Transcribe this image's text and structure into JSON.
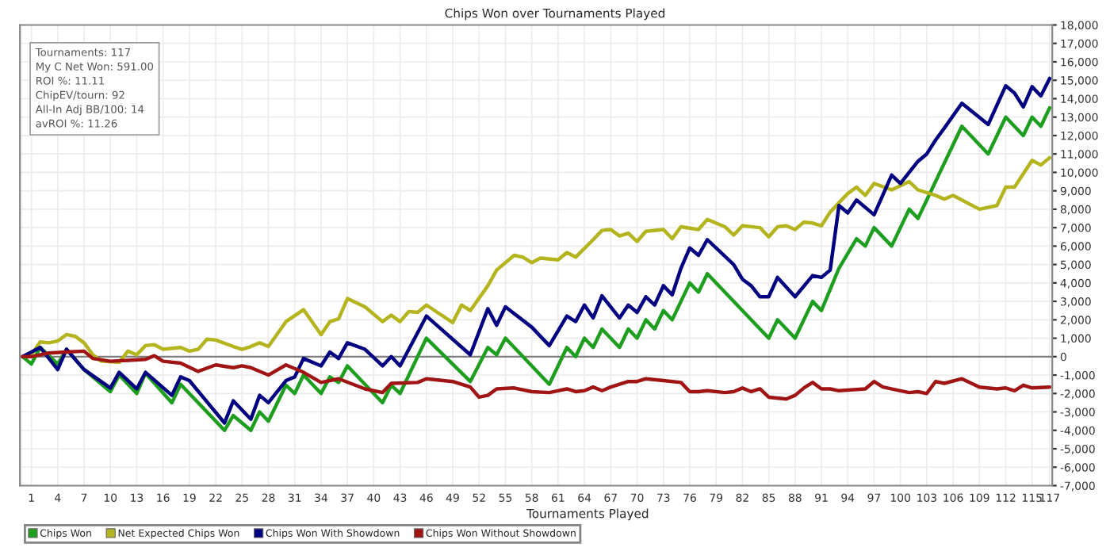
{
  "chart_data": {
    "type": "line",
    "title": "Chips Won over Tournaments Played",
    "xlabel": "Tournaments Played",
    "annotations": [
      "Tournaments: 117",
      "My C Net Won: 591.00",
      "ROI %: 11.11",
      "ChipEV/tourn: 92",
      "All-In Adj BB/100: 14",
      "avROI %: 11.26"
    ],
    "xlim": [
      -0.3,
      117.3
    ],
    "xticks": [
      1,
      4,
      7,
      10,
      13,
      16,
      19,
      22,
      25,
      28,
      31,
      34,
      37,
      40,
      43,
      46,
      49,
      52,
      55,
      58,
      61,
      64,
      67,
      70,
      73,
      76,
      79,
      82,
      85,
      88,
      91,
      94,
      97,
      100,
      103,
      106,
      109,
      112,
      115,
      117
    ],
    "ylim": [
      -7000,
      18000
    ],
    "yticks": [
      {
        "value": -7000,
        "label": "-7,000"
      },
      {
        "value": -6000,
        "label": "-6,000"
      },
      {
        "value": -5000,
        "label": "-5,000"
      },
      {
        "value": -4000,
        "label": "-4,000"
      },
      {
        "value": -3000,
        "label": "-3,000"
      },
      {
        "value": -2000,
        "label": "-2,000"
      },
      {
        "value": -1000,
        "label": "-1,000"
      },
      0,
      {
        "value": 1000,
        "label": "1,000"
      },
      {
        "value": 2000,
        "label": "2,000"
      },
      {
        "value": 3000,
        "label": "3,000"
      },
      {
        "value": 4000,
        "label": "4,000"
      },
      {
        "value": 5000,
        "label": "5,000"
      },
      {
        "value": 6000,
        "label": "6,000"
      },
      {
        "value": 7000,
        "label": "7,000"
      },
      {
        "value": 8000,
        "label": "8,000"
      },
      {
        "value": 9000,
        "label": "9,000"
      },
      {
        "value": 10000,
        "label": "10,000"
      },
      {
        "value": 11000,
        "label": "11,000"
      },
      {
        "value": 12000,
        "label": "12,000"
      },
      {
        "value": 13000,
        "label": "13,000"
      },
      {
        "value": 14000,
        "label": "14,000"
      },
      {
        "value": 15000,
        "label": "15,000"
      },
      {
        "value": 16000,
        "label": "16,000"
      },
      {
        "value": 17000,
        "label": "17,000"
      },
      {
        "value": 18000,
        "label": "18,000"
      }
    ],
    "grid": true,
    "legend": "bottom",
    "marker": "none",
    "line_style": "solid",
    "ref_lines": [
      {
        "axis": "y",
        "value": 0,
        "color": "#808080"
      }
    ],
    "series": [
      {
        "name": "Chips Won",
        "color": "#1e9e1e",
        "x": [
          0,
          1,
          2,
          4,
          5,
          7,
          10,
          11,
          13,
          14,
          17,
          18,
          23,
          24,
          26,
          27,
          28,
          30,
          31,
          32,
          34,
          35,
          36,
          37,
          41,
          42,
          43,
          46,
          51,
          53,
          54,
          55,
          60,
          62,
          63,
          64,
          65,
          66,
          68,
          69,
          70,
          71,
          72,
          73,
          74,
          76,
          77,
          78,
          85,
          86,
          88,
          90,
          91,
          93,
          95,
          96,
          97,
          99,
          101,
          102,
          107,
          110,
          112,
          114,
          115,
          116,
          117
        ],
        "values": [
          0,
          -400,
          500,
          -400,
          400,
          -700,
          -1900,
          -1000,
          -2000,
          -900,
          -2500,
          -1500,
          -4000,
          -3200,
          -4000,
          -3000,
          -3500,
          -1550,
          -2000,
          -1000,
          -2000,
          -1100,
          -1400,
          -500,
          -2500,
          -1550,
          -2000,
          1000,
          -1350,
          500,
          100,
          1000,
          -1500,
          500,
          0,
          1000,
          500,
          1500,
          500,
          1500,
          1000,
          2000,
          1500,
          2500,
          2000,
          4000,
          3500,
          4500,
          1000,
          2000,
          1000,
          3000,
          2500,
          4800,
          6400,
          6000,
          7000,
          6000,
          8000,
          7500,
          12500,
          11000,
          13000,
          12000,
          13000,
          12500,
          13500
        ]
      },
      {
        "name": "Net Expected Chips Won",
        "color": "#b4b41e",
        "x": [
          0,
          1,
          2,
          3,
          4,
          5,
          6,
          7,
          8,
          9,
          11,
          12,
          13,
          14,
          15,
          16,
          18,
          19,
          20,
          21,
          22,
          24,
          25,
          26,
          27,
          28,
          30,
          32,
          34,
          35,
          36,
          37,
          39,
          41,
          42,
          43,
          44,
          45,
          46,
          49,
          50,
          51,
          53,
          54,
          56,
          57,
          58,
          59,
          61,
          62,
          63,
          65,
          66,
          67,
          68,
          69,
          70,
          71,
          73,
          74,
          75,
          77,
          78,
          80,
          81,
          82,
          84,
          85,
          86,
          87,
          88,
          89,
          90,
          91,
          92,
          94,
          95,
          96,
          97,
          99,
          101,
          102,
          104,
          105,
          106,
          109,
          111,
          112,
          113,
          115,
          116,
          117
        ],
        "values": [
          0,
          100,
          800,
          750,
          850,
          1200,
          1100,
          750,
          100,
          -250,
          -300,
          300,
          100,
          600,
          650,
          400,
          500,
          300,
          400,
          950,
          900,
          550,
          400,
          550,
          750,
          550,
          1900,
          2550,
          1200,
          1900,
          2050,
          3150,
          2700,
          1900,
          2250,
          1900,
          2450,
          2400,
          2800,
          1850,
          2800,
          2500,
          3850,
          4700,
          5500,
          5400,
          5100,
          5350,
          5250,
          5650,
          5400,
          6350,
          6850,
          6900,
          6550,
          6700,
          6250,
          6800,
          6900,
          6400,
          7050,
          6900,
          7450,
          7050,
          6600,
          7100,
          7000,
          6500,
          7050,
          7100,
          6900,
          7300,
          7250,
          7100,
          7850,
          8850,
          9200,
          8750,
          9400,
          9050,
          9500,
          9050,
          8750,
          8550,
          8750,
          8000,
          8200,
          9200,
          9200,
          10650,
          10400,
          10800
        ]
      },
      {
        "name": "Chips Won With Showdown",
        "color": "#000080",
        "x": [
          0,
          2,
          4,
          5,
          7,
          10,
          11,
          13,
          14,
          17,
          18,
          19,
          23,
          24,
          26,
          27,
          28,
          30,
          31,
          32,
          34,
          35,
          36,
          37,
          39,
          41,
          42,
          43,
          46,
          51,
          53,
          54,
          55,
          58,
          60,
          62,
          63,
          64,
          65,
          66,
          68,
          69,
          70,
          71,
          72,
          73,
          74,
          75,
          76,
          77,
          78,
          81,
          82,
          83,
          84,
          85,
          86,
          88,
          90,
          91,
          92,
          93,
          94,
          95,
          97,
          99,
          100,
          102,
          103,
          104,
          105,
          107,
          110,
          112,
          113,
          114,
          115,
          116,
          117
        ],
        "values": [
          0,
          500,
          -700,
          400,
          -700,
          -1700,
          -850,
          -1750,
          -850,
          -2100,
          -1100,
          -1300,
          -3600,
          -2400,
          -3400,
          -2100,
          -2500,
          -1300,
          -1100,
          -100,
          -500,
          250,
          -100,
          750,
          400,
          -500,
          0,
          -500,
          2200,
          100,
          2600,
          1700,
          2700,
          1600,
          600,
          2200,
          1900,
          2800,
          2100,
          3300,
          2100,
          2800,
          2400,
          3250,
          2800,
          3850,
          3350,
          4800,
          5900,
          5500,
          6350,
          5000,
          4200,
          3850,
          3250,
          3250,
          4300,
          3250,
          4400,
          4300,
          4700,
          8200,
          7800,
          8500,
          7700,
          9850,
          9400,
          10600,
          11000,
          11750,
          12400,
          13750,
          12600,
          14700,
          14300,
          13550,
          14650,
          14150,
          15100
        ]
      },
      {
        "name": "Chips Won Without Showdown",
        "color": "#a01414",
        "x": [
          0,
          1,
          3,
          5,
          7,
          8,
          10,
          12,
          14,
          15,
          16,
          18,
          20,
          22,
          24,
          25,
          26,
          28,
          30,
          32,
          34,
          36,
          39,
          41,
          42,
          45,
          46,
          49,
          51,
          52,
          53,
          54,
          56,
          58,
          60,
          62,
          63,
          64,
          65,
          66,
          67,
          69,
          70,
          71,
          73,
          75,
          76,
          77,
          78,
          80,
          81,
          82,
          83,
          84,
          85,
          87,
          88,
          89,
          90,
          91,
          92,
          93,
          96,
          97,
          98,
          100,
          101,
          102,
          103,
          104,
          105,
          107,
          109,
          111,
          112,
          113,
          114,
          115,
          117
        ],
        "values": [
          0,
          0,
          200,
          250,
          300,
          -100,
          -250,
          -200,
          -150,
          50,
          -250,
          -350,
          -800,
          -450,
          -600,
          -500,
          -600,
          -1000,
          -450,
          -850,
          -1400,
          -1200,
          -1750,
          -1950,
          -1450,
          -1400,
          -1200,
          -1350,
          -1650,
          -2200,
          -2100,
          -1750,
          -1700,
          -1900,
          -1950,
          -1750,
          -1900,
          -1850,
          -1650,
          -1850,
          -1650,
          -1350,
          -1350,
          -1200,
          -1300,
          -1400,
          -1900,
          -1900,
          -1850,
          -1950,
          -1900,
          -1700,
          -1900,
          -1750,
          -2200,
          -2300,
          -2100,
          -1700,
          -1400,
          -1750,
          -1750,
          -1850,
          -1750,
          -1350,
          -1650,
          -1850,
          -1950,
          -1900,
          -2000,
          -1350,
          -1450,
          -1200,
          -1650,
          -1750,
          -1700,
          -1850,
          -1550,
          -1700,
          -1650
        ]
      }
    ]
  }
}
